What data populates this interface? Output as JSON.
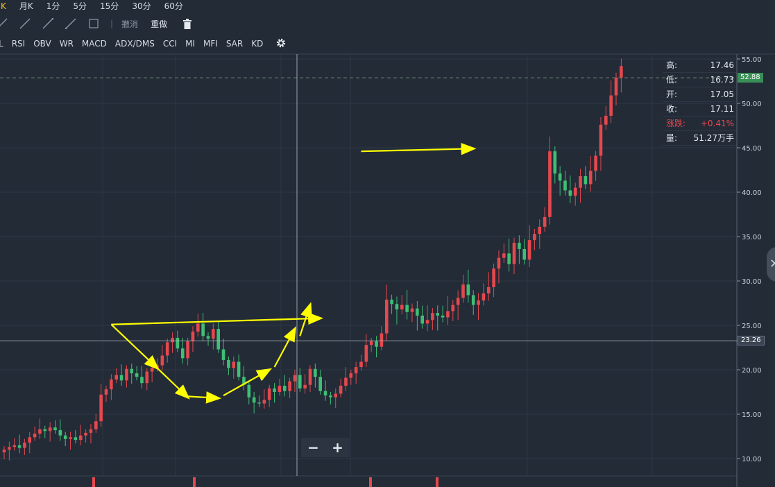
{
  "periods": [
    {
      "label": "周K",
      "active": true
    },
    {
      "label": "月K",
      "active": false
    },
    {
      "label": "1分",
      "active": false
    },
    {
      "label": "5分",
      "active": false
    },
    {
      "label": "15分",
      "active": false
    },
    {
      "label": "30分",
      "active": false
    },
    {
      "label": "60分",
      "active": false
    }
  ],
  "drawing_tools": {
    "undo_label": "撤消",
    "redo_label": "重做"
  },
  "indicators": [
    "L",
    "RSI",
    "OBV",
    "WR",
    "MACD",
    "ADX/DMS",
    "CCI",
    "MI",
    "MFI",
    "SAR",
    "KD"
  ],
  "info": {
    "high_label": "高:",
    "high": "17.46",
    "low_label": "低:",
    "low": "16.73",
    "open_label": "开:",
    "open": "17.05",
    "close_label": "收:",
    "close": "17.11",
    "change_label": "涨跌:",
    "change": "+0.41%",
    "volume_label": "量:",
    "volume": "51.27万手"
  },
  "price_tags": {
    "last": "52.88",
    "cross": "23.26"
  },
  "zoom": {
    "minus": "−",
    "plus": "+"
  },
  "colors": {
    "up": "#e5484d",
    "down": "#3fbf74",
    "annotation": "#ffff00",
    "background": "#232b37"
  },
  "chart_data": {
    "type": "candlestick",
    "y_axis": {
      "ticks": [
        10,
        15,
        20,
        25,
        30,
        35,
        40,
        45,
        50,
        55
      ],
      "tick_labels": [
        "10.00",
        "15.00",
        "20.00",
        "25.00",
        "30.00",
        "35.00",
        "40.00",
        "45.00",
        "50.00",
        "55.00"
      ],
      "range": [
        8,
        55.5
      ]
    },
    "grid": true,
    "closes": [
      11,
      11.3,
      11.5,
      11.2,
      11.8,
      12.4,
      12.8,
      13.3,
      13.1,
      13.5,
      13.2,
      12.6,
      12.2,
      12.4,
      12.1,
      12.6,
      12.9,
      13.3,
      14.2,
      17.2,
      17.8,
      18.9,
      19.4,
      18.8,
      20.1,
      19.6,
      19.2,
      18.5,
      19.8,
      20.2,
      20.5,
      21.6,
      23.1,
      23.6,
      22.4,
      21.3,
      23.2,
      24.3,
      25.2,
      23.8,
      23.5,
      24.6,
      22.3,
      21.1,
      20.2,
      20.9,
      19.2,
      18.3,
      16.9,
      16.3,
      16.2,
      16.6,
      17.9,
      17.5,
      18.2,
      17.6,
      18.7,
      19.4,
      17.9,
      18.3,
      20.1,
      19.2,
      17.6,
      17.1,
      16.9,
      17.3,
      18.2,
      19.1,
      19.6,
      20.3,
      20.9,
      22.8,
      23.2,
      22.6,
      24.1,
      27.9,
      27.4,
      26.8,
      27.3,
      26.5,
      26.9,
      26.1,
      25.2,
      25.6,
      26.4,
      26.1,
      25.9,
      26.6,
      27.3,
      28.1,
      29.6,
      28.4,
      27.3,
      27.8,
      28.6,
      29.3,
      31.4,
      32.6,
      33.1,
      31.9,
      34.3,
      33.6,
      32.4,
      34.6,
      35.3,
      36.1,
      37.2,
      44.6,
      42.1,
      41.3,
      40.2,
      39.6,
      40.5,
      41.8,
      40.9,
      42.4,
      44.1,
      47.6,
      48.6,
      50.9,
      52.9,
      54.2
    ],
    "annotations": [
      {
        "type": "arrow",
        "from": [
          21,
          25.1
        ],
        "to": [
          62,
          25.8
        ]
      },
      {
        "type": "arrow",
        "from": [
          21,
          25.1
        ],
        "to": [
          30,
          20.2
        ]
      },
      {
        "type": "arrow",
        "from": [
          30,
          20.2
        ],
        "to": [
          36,
          16.9
        ]
      },
      {
        "type": "arrow",
        "from": [
          36,
          17
        ],
        "to": [
          42,
          16.8
        ]
      },
      {
        "type": "arrow",
        "from": [
          43,
          17.1
        ],
        "to": [
          52,
          20.0
        ]
      },
      {
        "type": "arrow",
        "from": [
          53,
          20.3
        ],
        "to": [
          57,
          24.6
        ]
      },
      {
        "type": "arrow",
        "from": [
          58,
          23.8
        ],
        "to": [
          60,
          27.3
        ]
      },
      {
        "type": "arrow",
        "from": [
          70,
          44.6
        ],
        "to": [
          92,
          44.9
        ]
      }
    ]
  }
}
